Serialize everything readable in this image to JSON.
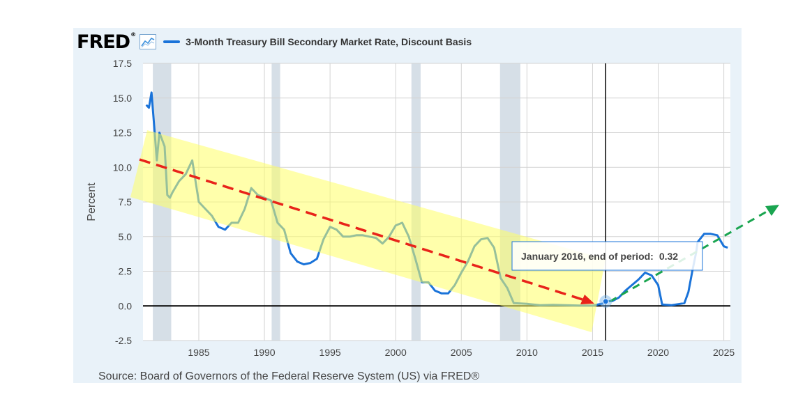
{
  "header": {
    "logo": "FRED",
    "logo_mark": "®",
    "logo_icon": "chart-line-icon",
    "series_title": "3-Month Treasury Bill Secondary Market Rate, Discount Basis"
  },
  "source_text": "Source: Board of Governors of the Federal Reserve System (US) via FRED®",
  "tooltip": {
    "month": "January 2016",
    "label": ", end of period:",
    "value": "0.32"
  },
  "colors": {
    "series": "#1a73d9",
    "highlight_band": "#ffff66",
    "trend_down": "#e8231a",
    "trend_up": "#1aa550",
    "recession": "#d6dfe7",
    "tooltip_border": "#1a73d9"
  },
  "chart_data": {
    "type": "line",
    "title": "3-Month Treasury Bill Secondary Market Rate, Discount Basis",
    "xlabel": "",
    "ylabel": "Percent",
    "xlim": [
      1980.75,
      2025.5
    ],
    "ylim": [
      -2.5,
      17.5
    ],
    "xticks": [
      "1985",
      "1990",
      "1995",
      "2000",
      "2005",
      "2010",
      "2015",
      "2020",
      "2025"
    ],
    "yticks": [
      "17.5",
      "15.0",
      "12.5",
      "10.0",
      "7.5",
      "5.0",
      "2.5",
      "0.0",
      "-2.5"
    ],
    "grid": true,
    "recessions": [
      [
        1981.5,
        1982.9
      ],
      [
        1990.55,
        1991.2
      ],
      [
        2001.2,
        2001.9
      ],
      [
        2007.95,
        2009.5
      ]
    ],
    "highlight_date": 2016.0,
    "series": [
      {
        "name": "3-Month Treasury Bill Secondary Market Rate, Discount Basis",
        "x": [
          1981.0,
          1981.2,
          1981.4,
          1981.6,
          1981.8,
          1982.0,
          1982.2,
          1982.4,
          1982.6,
          1982.8,
          1983.0,
          1983.5,
          1984.0,
          1984.5,
          1985.0,
          1985.5,
          1986.0,
          1986.5,
          1987.0,
          1987.5,
          1988.0,
          1988.5,
          1989.0,
          1989.5,
          1990.0,
          1990.5,
          1991.0,
          1991.5,
          1992.0,
          1992.5,
          1993.0,
          1993.5,
          1994.0,
          1994.5,
          1995.0,
          1995.5,
          1996.0,
          1996.5,
          1997.0,
          1997.5,
          1998.0,
          1998.5,
          1999.0,
          1999.5,
          2000.0,
          2000.5,
          2001.0,
          2001.5,
          2002.0,
          2002.5,
          2003.0,
          2003.5,
          2004.0,
          2004.5,
          2005.0,
          2005.5,
          2006.0,
          2006.5,
          2007.0,
          2007.5,
          2008.0,
          2008.5,
          2009.0,
          2010.0,
          2011.0,
          2012.0,
          2013.0,
          2014.0,
          2015.0,
          2015.9,
          2016.0,
          2016.5,
          2017.0,
          2017.5,
          2018.0,
          2018.5,
          2019.0,
          2019.5,
          2020.0,
          2020.3,
          2021.0,
          2022.0,
          2022.3,
          2022.6,
          2022.9,
          2023.0,
          2023.5,
          2024.0,
          2024.5,
          2025.0,
          2025.3
        ],
        "values": [
          14.5,
          14.3,
          15.4,
          13.0,
          10.5,
          12.5,
          12.0,
          11.5,
          8.0,
          7.8,
          8.2,
          9.0,
          9.5,
          10.5,
          7.5,
          7.0,
          6.5,
          5.7,
          5.5,
          6.0,
          6.0,
          7.0,
          8.5,
          8.0,
          7.8,
          7.6,
          6.0,
          5.5,
          3.8,
          3.2,
          3.0,
          3.1,
          3.4,
          4.8,
          5.7,
          5.5,
          5.0,
          5.0,
          5.1,
          5.1,
          5.0,
          4.9,
          4.5,
          5.0,
          5.8,
          6.0,
          5.0,
          3.4,
          1.7,
          1.7,
          1.1,
          0.9,
          0.9,
          1.5,
          2.4,
          3.2,
          4.3,
          4.8,
          4.9,
          4.2,
          2.0,
          1.3,
          0.2,
          0.15,
          0.05,
          0.08,
          0.05,
          0.03,
          0.02,
          0.2,
          0.32,
          0.35,
          0.6,
          1.1,
          1.5,
          1.9,
          2.4,
          2.2,
          1.5,
          0.1,
          0.05,
          0.2,
          1.0,
          2.5,
          3.9,
          4.6,
          5.2,
          5.2,
          5.1,
          4.3,
          4.2
        ]
      }
    ]
  }
}
